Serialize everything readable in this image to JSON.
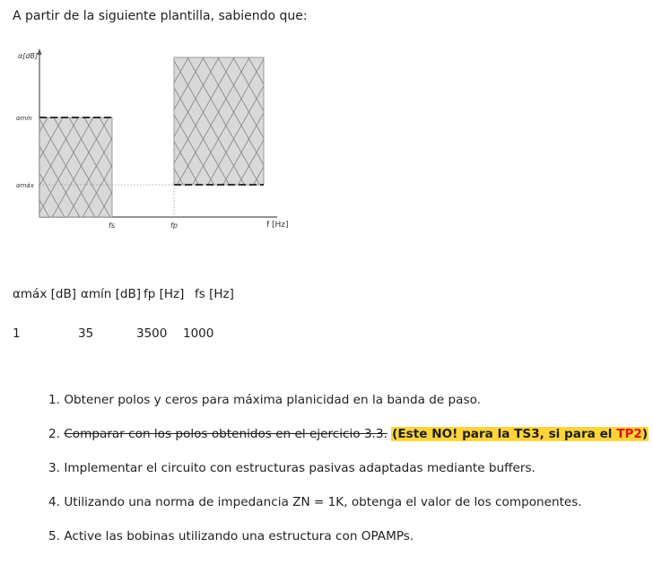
{
  "intro": "A partir de la siguiente plantilla, sabiendo que:",
  "figure": {
    "y_axis_label": "α[dB]",
    "alpha_min_label": "αmín",
    "alpha_max_label": "αmáx",
    "fs_label": "fs",
    "fp_label": "fp",
    "x_axis_label": "f [Hz]"
  },
  "table": {
    "headers": [
      "αmáx [dB]",
      "αmín [dB]",
      "fp [Hz]",
      "fs [Hz]"
    ],
    "row": [
      "1",
      "35",
      "3500",
      "1000"
    ]
  },
  "items": [
    {
      "num": "1.",
      "text": "Obtener polos y ceros para máxima planicidad en la banda de paso."
    },
    {
      "num": "2.",
      "strike": "Comparar con los polos obtenidos en el ejercicio 3.3.",
      "highlight": "(Este NO! para la TS3, si para el ",
      "highlight_red": "TP2",
      "highlight_end": ")"
    },
    {
      "num": "3.",
      "text": "Implementar el circuito con estructuras pasivas adaptadas mediante buffers."
    },
    {
      "num": "4.",
      "text": "Utilizando una norma de impedancia ZN = 1K, obtenga el valor de los componentes."
    },
    {
      "num": "5.",
      "text": "Active las bobinas utilizando una estructura con OPAMPs."
    }
  ]
}
